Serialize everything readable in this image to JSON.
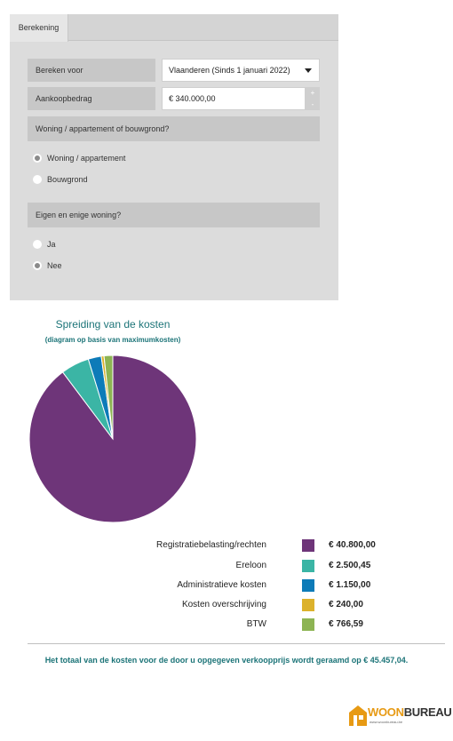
{
  "form": {
    "tab_label": "Berekening",
    "bereken_voor": {
      "label": "Bereken voor",
      "selected": "Vlaanderen (Sinds 1 januari 2022)"
    },
    "aankoopbedrag": {
      "label": "Aankoopbedrag",
      "value": "€ 340.000,00",
      "plus": "+",
      "minus": "-"
    },
    "type_section": {
      "title": "Woning / appartement of bouwgrond?",
      "options": [
        {
          "label": "Woning / appartement",
          "checked": true
        },
        {
          "label": "Bouwgrond",
          "checked": false
        }
      ]
    },
    "eigen_section": {
      "title": "Eigen en enige woning?",
      "options": [
        {
          "label": "Ja",
          "checked": false
        },
        {
          "label": "Nee",
          "checked": true
        }
      ]
    }
  },
  "chart_data": {
    "type": "pie",
    "title": "Spreiding van de kosten",
    "subtitle": "(diagram op basis van maximumkosten)",
    "categories": [
      "Registratiebelasting/rechten",
      "Ereloon",
      "Administratieve kosten",
      "Kosten overschrijving",
      "BTW"
    ],
    "values": [
      40800.0,
      2500.45,
      1150.0,
      240.0,
      766.59
    ],
    "value_labels": [
      "€ 40.800,00",
      "€ 2.500,45",
      "€ 1.150,00",
      "€ 240,00",
      "€ 766,59"
    ],
    "colors": [
      "#6e3579",
      "#3bb5a5",
      "#0d7bb8",
      "#dcb22c",
      "#8db453"
    ],
    "legend_position": "bottom-right"
  },
  "total_text": "Het totaal van de kosten voor de door u opgegeven verkoopprijs wordt geraamd op € 45.457,04.",
  "logo": {
    "part1": "WOON",
    "part2": "BUREAU",
    "url": "www.woonbureau.be"
  }
}
